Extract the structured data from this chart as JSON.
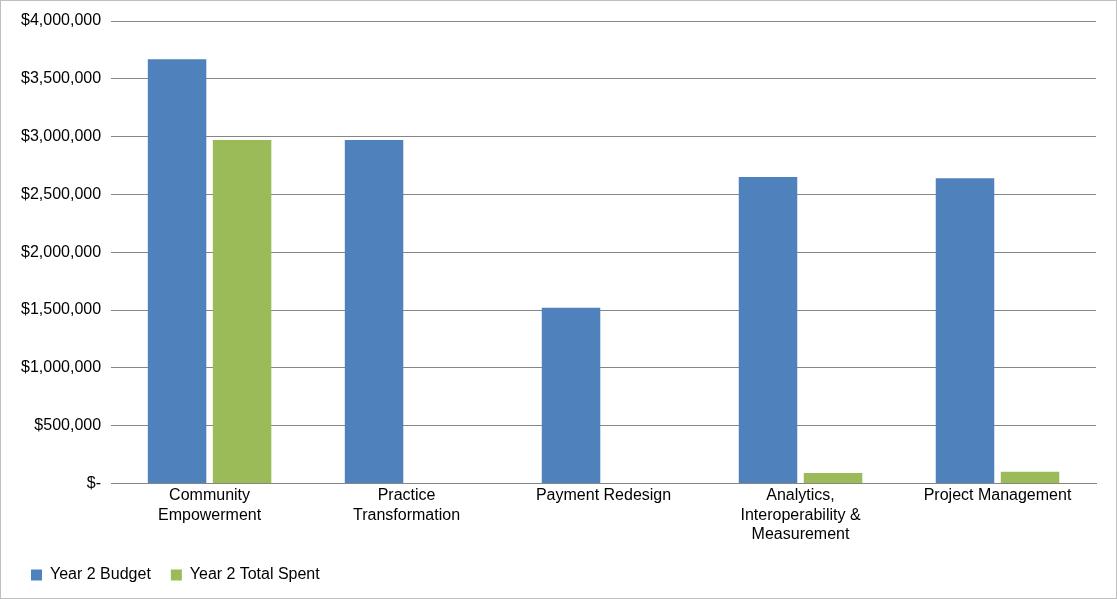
{
  "chart_data": {
    "type": "bar",
    "categories": [
      "Community Empowerment",
      "Practice Transformation",
      "Payment Redesign",
      "Analytics, Interoperability & Measurement",
      "Project Management"
    ],
    "series": [
      {
        "name": "Year 2 Budget",
        "color": "#4f81bd",
        "values": [
          3670000,
          2970000,
          1520000,
          2650000,
          2640000
        ]
      },
      {
        "name": "Year 2 Total Spent",
        "color": "#9bbb59",
        "values": [
          2970000,
          0,
          0,
          90000,
          100000
        ]
      }
    ],
    "ylim": [
      0,
      4000000
    ],
    "yticks": [
      {
        "value": 0,
        "label": "$-"
      },
      {
        "value": 500000,
        "label": "$500,000"
      },
      {
        "value": 1000000,
        "label": "$1,000,000"
      },
      {
        "value": 1500000,
        "label": "$1,500,000"
      },
      {
        "value": 2000000,
        "label": "$2,000,000"
      },
      {
        "value": 2500000,
        "label": "$2,500,000"
      },
      {
        "value": 3000000,
        "label": "$3,000,000"
      },
      {
        "value": 3500000,
        "label": "$3,500,000"
      },
      {
        "value": 4000000,
        "label": "$4,000,000"
      }
    ],
    "grid": "y",
    "legend": "bottom left"
  }
}
